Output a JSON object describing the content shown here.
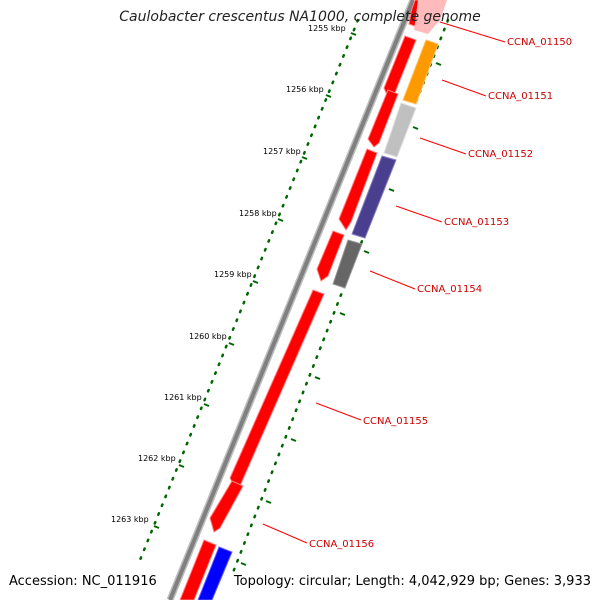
{
  "title": "Caulobacter crescentus NA1000, complete genome",
  "footer": {
    "accession": "Accession: NC_011916",
    "summary": "Topology: circular; Length: 4,042,929 bp; Genes: 3,933"
  },
  "scale": {
    "ticks": [
      "1255 kbp",
      "1256 kbp",
      "1257 kbp",
      "1258 kbp",
      "1259 kbp",
      "1260 kbp",
      "1261 kbp",
      "1262 kbp",
      "1263 kbp"
    ]
  },
  "genes": [
    {
      "id": "CCNA_01150"
    },
    {
      "id": "CCNA_01151"
    },
    {
      "id": "CCNA_01152"
    },
    {
      "id": "CCNA_01153"
    },
    {
      "id": "CCNA_01154"
    },
    {
      "id": "CCNA_01155"
    },
    {
      "id": "CCNA_01156"
    }
  ],
  "colors": {
    "forward": "#ff0000",
    "backbone": "#808080",
    "label_line": "#ff0000",
    "tick": "#006600",
    "orange": "#ff9900",
    "lightgray": "#c0c0c0",
    "slate": "#4a3f8f",
    "darkgray": "#666666",
    "blue": "#0000ff",
    "pink": "#ffbbbb"
  }
}
